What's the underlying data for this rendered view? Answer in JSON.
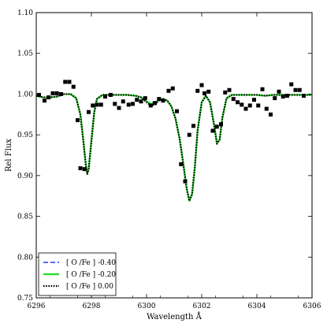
{
  "chart_data": {
    "type": "line",
    "title": "",
    "xlabel": "Wavelength Å",
    "ylabel": "Rel Flux",
    "xlim": [
      6296,
      6306
    ],
    "ylim": [
      0.75,
      1.1
    ],
    "xticks": [
      6296,
      6298,
      6300,
      6302,
      6304,
      6306
    ],
    "yticks": [
      0.75,
      0.8,
      0.85,
      0.9,
      0.95,
      1.0,
      1.05,
      1.1
    ],
    "xtick_labels": [
      "6296",
      "6298",
      "6300",
      "6302",
      "6304",
      "6306"
    ],
    "ytick_labels": [
      "0.75",
      "0.80",
      "0.85",
      "0.90",
      "0.95",
      "1.00",
      "1.05",
      "1.10"
    ],
    "grid": false,
    "legend_position": "lower-left",
    "observed": {
      "marker": "square",
      "color": "#000000",
      "x": [
        6296.1,
        6296.3,
        6296.45,
        6296.6,
        6296.75,
        6296.9,
        6297.05,
        6297.2,
        6297.35,
        6297.5,
        6297.6,
        6297.75,
        6297.9,
        6298.05,
        6298.2,
        6298.35,
        6298.5,
        6298.7,
        6298.85,
        6299.0,
        6299.15,
        6299.35,
        6299.5,
        6299.65,
        6299.8,
        6299.95,
        6300.15,
        6300.3,
        6300.45,
        6300.6,
        6300.8,
        6300.95,
        6301.1,
        6301.25,
        6301.4,
        6301.55,
        6301.7,
        6301.85,
        6302.0,
        6302.1,
        6302.25,
        6302.4,
        6302.55,
        6302.7,
        6302.85,
        6303.0,
        6303.15,
        6303.3,
        6303.45,
        6303.6,
        6303.75,
        6303.9,
        6304.05,
        6304.2,
        6304.35,
        6304.5,
        6304.65,
        6304.8,
        6304.95,
        6305.1,
        6305.25,
        6305.4,
        6305.55,
        6305.7
      ],
      "y": [
        0.999,
        0.992,
        0.996,
        1.001,
        1.001,
        1.0,
        1.015,
        1.015,
        1.009,
        0.968,
        0.909,
        0.908,
        0.978,
        0.986,
        0.987,
        0.987,
        0.997,
        0.999,
        0.988,
        0.983,
        0.991,
        0.987,
        0.988,
        0.993,
        0.991,
        0.995,
        0.986,
        0.989,
        0.994,
        0.992,
        1.004,
        1.007,
        0.979,
        0.914,
        0.893,
        0.95,
        0.961,
        1.004,
        1.011,
        1.001,
        1.003,
        0.955,
        0.96,
        0.963,
        1.002,
        1.005,
        0.994,
        0.99,
        0.987,
        0.982,
        0.986,
        0.993,
        0.986,
        1.006,
        0.982,
        0.975,
        0.995,
        1.003,
        0.997,
        0.998,
        1.012,
        1.005,
        1.005,
        0.998
      ]
    },
    "series": [
      {
        "name": "[ O /Fe ] -0.40",
        "color": "#1f3cff",
        "style": "dashed",
        "x": [
          6296.0,
          6296.25,
          6296.5,
          6296.75,
          6297.0,
          6297.25,
          6297.45,
          6297.6,
          6297.7,
          6297.8,
          6297.85,
          6297.9,
          6298.0,
          6298.1,
          6298.2,
          6298.4,
          6298.7,
          6299.0,
          6299.3,
          6299.6,
          6299.8,
          6300.0,
          6300.15,
          6300.3,
          6300.45,
          6300.6,
          6300.75,
          6300.9,
          6301.05,
          6301.2,
          6301.35,
          6301.45,
          6301.55,
          6301.65,
          6301.75,
          6301.85,
          6302.0,
          6302.15,
          6302.3,
          6302.45,
          6302.55,
          6302.65,
          6302.75,
          6302.9,
          6303.1,
          6303.4,
          6303.7,
          6304.0,
          6304.3,
          6304.6,
          6304.9,
          6305.2,
          6305.5,
          6305.8,
          6306.0
        ],
        "y": [
          0.998,
          0.996,
          0.996,
          0.997,
          1.0,
          1.0,
          0.995,
          0.975,
          0.945,
          0.912,
          0.905,
          0.91,
          0.945,
          0.978,
          0.994,
          0.999,
          0.999,
          0.999,
          0.999,
          0.998,
          0.996,
          0.991,
          0.989,
          0.99,
          0.994,
          0.994,
          0.992,
          0.985,
          0.97,
          0.945,
          0.91,
          0.885,
          0.87,
          0.878,
          0.91,
          0.955,
          0.99,
          0.998,
          0.99,
          0.962,
          0.942,
          0.945,
          0.972,
          0.995,
          0.999,
          0.999,
          0.999,
          0.999,
          0.998,
          0.999,
          0.999,
          0.999,
          0.999,
          0.999,
          0.999
        ]
      },
      {
        "name": "[ O /Fe ] -0.20",
        "color": "#22dd22",
        "style": "solid",
        "x": [
          6296.0,
          6296.25,
          6296.5,
          6296.75,
          6297.0,
          6297.25,
          6297.45,
          6297.6,
          6297.7,
          6297.8,
          6297.85,
          6297.9,
          6298.0,
          6298.1,
          6298.2,
          6298.4,
          6298.7,
          6299.0,
          6299.3,
          6299.6,
          6299.8,
          6300.0,
          6300.15,
          6300.3,
          6300.45,
          6300.6,
          6300.75,
          6300.9,
          6301.05,
          6301.2,
          6301.35,
          6301.45,
          6301.55,
          6301.65,
          6301.75,
          6301.85,
          6302.0,
          6302.15,
          6302.3,
          6302.45,
          6302.55,
          6302.65,
          6302.75,
          6302.9,
          6303.1,
          6303.4,
          6303.7,
          6304.0,
          6304.3,
          6304.6,
          6304.9,
          6305.2,
          6305.5,
          6305.8,
          6306.0
        ],
        "y": [
          0.998,
          0.996,
          0.996,
          0.997,
          1.0,
          1.0,
          0.995,
          0.975,
          0.945,
          0.912,
          0.903,
          0.908,
          0.943,
          0.977,
          0.994,
          0.999,
          0.999,
          0.999,
          0.999,
          0.998,
          0.996,
          0.991,
          0.988,
          0.989,
          0.993,
          0.994,
          0.992,
          0.985,
          0.97,
          0.945,
          0.91,
          0.885,
          0.869,
          0.877,
          0.91,
          0.955,
          0.99,
          0.998,
          0.99,
          0.962,
          0.94,
          0.944,
          0.971,
          0.995,
          0.999,
          0.999,
          0.999,
          0.999,
          0.998,
          0.999,
          0.999,
          0.999,
          0.999,
          0.999,
          0.999
        ]
      },
      {
        "name": "[ O /Fe ] 0.00",
        "color": "#000000",
        "style": "dotted",
        "x": [
          6296.0,
          6296.25,
          6296.5,
          6296.75,
          6297.0,
          6297.25,
          6297.45,
          6297.6,
          6297.7,
          6297.8,
          6297.85,
          6297.9,
          6298.0,
          6298.1,
          6298.2,
          6298.4,
          6298.7,
          6299.0,
          6299.3,
          6299.6,
          6299.8,
          6300.0,
          6300.15,
          6300.3,
          6300.45,
          6300.6,
          6300.75,
          6300.9,
          6301.05,
          6301.2,
          6301.35,
          6301.45,
          6301.55,
          6301.65,
          6301.75,
          6301.85,
          6302.0,
          6302.15,
          6302.3,
          6302.45,
          6302.55,
          6302.65,
          6302.75,
          6302.9,
          6303.1,
          6303.4,
          6303.7,
          6304.0,
          6304.3,
          6304.6,
          6304.9,
          6305.2,
          6305.5,
          6305.8,
          6306.0
        ],
        "y": [
          0.998,
          0.996,
          0.996,
          0.997,
          1.0,
          1.0,
          0.995,
          0.975,
          0.945,
          0.912,
          0.902,
          0.907,
          0.942,
          0.977,
          0.994,
          0.999,
          0.999,
          0.999,
          0.999,
          0.998,
          0.996,
          0.99,
          0.986,
          0.987,
          0.992,
          0.994,
          0.992,
          0.985,
          0.97,
          0.945,
          0.91,
          0.885,
          0.869,
          0.877,
          0.91,
          0.955,
          0.99,
          0.998,
          0.99,
          0.962,
          0.939,
          0.944,
          0.971,
          0.995,
          0.999,
          0.999,
          0.999,
          0.999,
          0.998,
          0.999,
          0.999,
          0.999,
          0.999,
          0.999,
          0.999
        ]
      }
    ]
  }
}
